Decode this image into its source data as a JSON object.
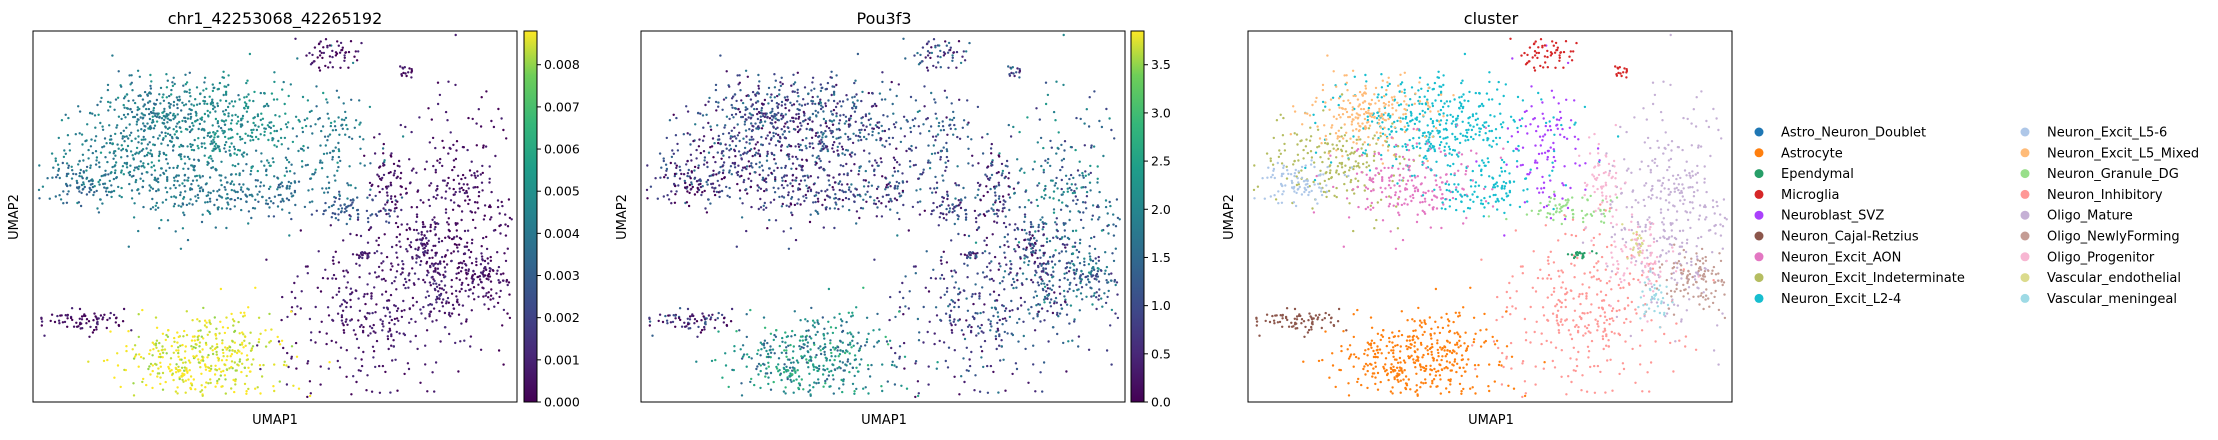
{
  "figure": {
    "background": "#ffffff"
  },
  "chart_data": [
    {
      "type": "scatter",
      "title": "chr1_42253068_42265192",
      "xlabel": "UMAP1",
      "ylabel": "UMAP2",
      "colorbar": {
        "colormap": "viridis",
        "range": [
          0,
          0.0088
        ],
        "ticks": [
          "0.000",
          "0.001",
          "0.002",
          "0.003",
          "0.004",
          "0.005",
          "0.006",
          "0.007",
          "0.008"
        ]
      }
    },
    {
      "type": "scatter",
      "title": "Pou3f3",
      "xlabel": "UMAP1",
      "ylabel": "UMAP2",
      "colorbar": {
        "colormap": "viridis",
        "range": [
          0,
          3.85
        ],
        "ticks": [
          "0.0",
          "0.5",
          "1.0",
          "1.5",
          "2.0",
          "2.5",
          "3.0",
          "3.5"
        ]
      }
    },
    {
      "type": "scatter",
      "title": "cluster",
      "xlabel": "UMAP1",
      "ylabel": "UMAP2",
      "legend_placement": "right",
      "legend": [
        {
          "name": "Astro_Neuron_Doublet",
          "color": "#1f77b4"
        },
        {
          "name": "Astrocyte",
          "color": "#ff7f0e"
        },
        {
          "name": "Ependymal",
          "color": "#279e68"
        },
        {
          "name": "Microglia",
          "color": "#d62728"
        },
        {
          "name": "Neuroblast_SVZ",
          "color": "#aa40fc"
        },
        {
          "name": "Neuron_Cajal-Retzius",
          "color": "#8c564b"
        },
        {
          "name": "Neuron_Excit_AON",
          "color": "#e377c2"
        },
        {
          "name": "Neuron_Excit_Indeterminate",
          "color": "#b5bd61"
        },
        {
          "name": "Neuron_Excit_L2-4",
          "color": "#17becf"
        },
        {
          "name": "Neuron_Excit_L5-6",
          "color": "#aec7e8"
        },
        {
          "name": "Neuron_Excit_L5_Mixed",
          "color": "#ffbb78"
        },
        {
          "name": "Neuron_Granule_DG",
          "color": "#98df8a"
        },
        {
          "name": "Neuron_Inhibitory",
          "color": "#ff9896"
        },
        {
          "name": "Oligo_Mature",
          "color": "#c5b0d5"
        },
        {
          "name": "Oligo_NewlyForming",
          "color": "#c49c94"
        },
        {
          "name": "Oligo_Progenitor",
          "color": "#f7b6d2"
        },
        {
          "name": "Vascular_endothelial",
          "color": "#dbdb8d"
        },
        {
          "name": "Vascular_meningeal",
          "color": "#9edae5"
        }
      ]
    }
  ]
}
